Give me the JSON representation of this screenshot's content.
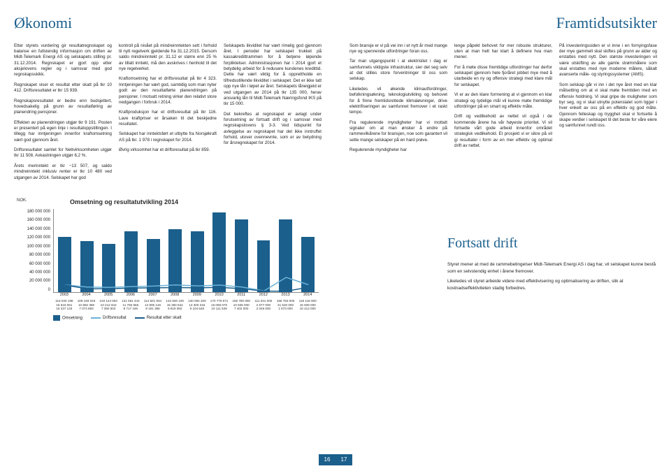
{
  "left": {
    "title": "Økonomi",
    "columns": [
      [
        "Etter styrets vurdering gir resultatregnskapet og balanse en fullstendig informasjon om driften av Midt-Telemark Energi AS og selskapets stilling pr. 31.12.2014. Regnskapet er gjort opp etter aksjelovens regler og i samsvar med god regnskapsskikk.",
        "Regnskapet viser et resultat etter skatt på tkr 10 412. Driftsresultatet er tkr 15 939.",
        "Regnskapsresultatet er bedre enn budsjettert, hovedsakelig på grunn av resultatføring av planendring pensjoner.",
        "Effekten av planendringen utgjør tkr 9 191. Posten er presentert på egen linje i resultatoppstillingen. I tillegg har inntjeningen innenfor kraftomsetning vært god gjennom året.",
        "Driftsresultatet samlet for Nettvirksomheten utgjør tkr 11 508. Avkastningen utgjør 6,2 %.",
        "Årets merinntekt er tkr −13 507, og saldo mindreinntekt inklusiv renter er tkr 10 480 ved utgangen av 2014. Selskapet har god"
      ],
      [
        "kontroll på nivået på mindreinntekten sett i forhold til nytt regelverk gjeldende fra 31.12.2015. Dersom saldo mindreinntekt pr. 31.12 er større enn 25 % av tillatt inntekt, må den avskrives i henhold til det nye regelverket.",
        "Kraftomsetning har et driftsresultat på tkr 4 323. Inntjeningen har vært god, samtidig som man nyter godt av den resultatførte planendringen på pensjoner. I motsatt retning virker den relativt store nedgangen i forbruk i 2014.",
        "Kraftproduksjon har et driftsresultat på tkr 116. Lave kraftpriser er årsaken til det beskjedne resultatet.",
        "Selskapet har inntektsført et utbytte fra Norsjøkraft AS på tkr. 1 978 i regnskapet for 2014.",
        "Øvrig virksomhet har et driftsresultat på tkr 859."
      ],
      [
        "Selskapets likviditet har vært rimelig god gjennom året. I perioder har selskapet trukket på kassakredittrammen for å betjene løpende forpliktelser. Administrasjonen har i 2014 gjort et betydelig arbeid for å redusere kundenes kredittid. Dette har vært viktig for å opprettholde en tilfredsstillende likviditet i selskapet. Det er ikke tatt opp nye lån i løpet av året. Selskapets låneigjeld er ved utgangen av 2014 på tkr 135 000, herav ansvarlig lån til Midt-Telemark Næringsfond IKS på tkr 15 000.",
        "Det bekreftes at regnskapet er avlagt under forutsetning av fortsatt drift og i samsvar med regnskapslovens § 3-3. Ved tidspunkt for avleggelse av regnskapet har det ikke inntruffet forhold, utover ovennevnte, som er av betydning for årsregnskapet for 2014."
      ]
    ],
    "chart": {
      "title": "Omsetning og resultatutvikling 2014",
      "nok_label": "NOK.",
      "type": "bar+line",
      "bar_color": "#1b5f8c",
      "line1_color": "#6ab2d8",
      "line2_color": "#1b5f8c",
      "background_color": "#ffffff",
      "ylim": [
        0,
        180000000
      ],
      "ytick_step": 20000000,
      "yticks": [
        "180 000 000",
        "160 000 000",
        "140 000 000",
        "120 000 000",
        "100 000 000",
        "80 000 000",
        "60 000 000",
        "40 000 000",
        "20 000 000",
        "0"
      ],
      "years": [
        "2003",
        "2004",
        "2005",
        "2006",
        "2007",
        "2008",
        "2009",
        "2010",
        "2011",
        "2012",
        "2013",
        "2014"
      ],
      "omsetning": [
        119040198,
        109193033,
        103124094,
        131061444,
        114501934,
        134830100,
        130084200,
        170776571,
        156780000,
        111041000,
        156783000,
        118118000
      ],
      "driftsresultat": [
        15616061,
        10882359,
        10212944,
        11750666,
        12906146,
        15350842,
        13300316,
        15069070,
        10835000,
        2677000,
        31520000,
        15939000
      ],
      "resultat_etter_skatt": [
        15237133,
        7074883,
        7350502,
        8717446,
        9191366,
        9819082,
        9104646,
        10111529,
        7402000,
        2046000,
        1873000,
        10412000
      ],
      "legend": [
        "Omsetning",
        "Driftsresultat",
        "Resultat etter skatt"
      ]
    },
    "pagenum": "16"
  },
  "right": {
    "title": "Framtidsutsikter",
    "columns": [
      [
        "Som bransje er vi på vei inn i et nytt år med mange nye og spennende utfordringer foran oss.",
        "Tar man utgangspunkt i at elektrisitet i dag er samfunnets viktigste infrastruktur, sier det seg selv at det stilles store forventninger til oss som selskap.",
        "Likeledes vil økende klimautfordringer, befolkningsøkning, teknologiutvikling og behovet for å finne fremtidsrettede klimaløsninger, drive elektrifiseringen av samfunnet fremover i et raskt tempo.",
        "Fra regulerende myndigheter har vi mottatt signaler om at man ønsker å endre på rammevilkårene for bransjen, noe som garantert vil sette mange selskaper på en hard prøve.",
        "Regulerende myndigheter har"
      ],
      [
        "lenge påpekt behovet for mer robuste strukturer, uten at man helt har klart å definere hva man mener.",
        "For å møte disse fremtidige utfordringer har derfor selskapet gjennom hele fjoråret jobbet mye med å utarbeide en ny og offensiv strategi med klare mål for selskapet.",
        "Vi er av den klare formening at vi gjennom en klar strategi og tydelige mål vil kunne møte fremtidige utfordringer på en smart og effektiv måte.",
        "Drift og vedlikehold av nettet vil også i de kommende årene ha vår høyeste prioritet. Vi vil fortsette vårt gode arbeid innenfor området strategisk vedlikehold. Et prosjekt vi er sikre på vil gi resultater i form av en mer effektiv og optimal drift av nettet."
      ],
      [
        "På investeringssiden er vi inne i en fornyingsfase der mye gammelt skal skiftes på grunn av alder og erstattes med nytt. Den største investeringen vil være utskifting av alle gamle strømmålere som skal erstattes med nye moderne målere, såkalt avanserte måle- og styringssystemer (AMS).",
        "Som selskap går vi inn i det nye året med en klar målsetting om at vi skal møte fremtiden med en offensiv holdning. Vi skal gripe de muligheter som byr seg, og vi skal utnytte potensialet som ligger i hver enkelt av oss på en effektiv og god måte. Gjennom felleskap og trygghet skal vi fortsette å skape verdier i selskapet til det beste for våre eiere og samfunnet rundt oss."
      ]
    ],
    "fortsatt": {
      "title": "Fortsatt drift",
      "lines": [
        "Styret mener at med de rammebetingelser Midt-Telemark Energi AS i dag har, vil selskapet kunne bestå som en selvstendig enhet i årene fremover.",
        "Likeledes vil styret arbeide videre med effektivisering og optimalisering av driften, slik at kostnadseffektiviteten stadig forbedres."
      ]
    },
    "pagenum": "17"
  }
}
